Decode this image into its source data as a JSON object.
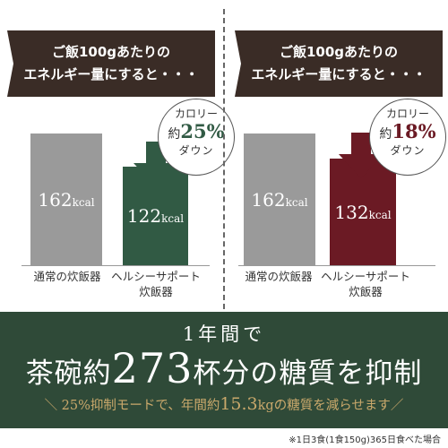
{
  "colors": {
    "banner_bg": "#3a2c26",
    "bar_normal": "#9a9a9a",
    "bar_left_healthy": "#315a44",
    "bar_right_healthy": "#6b1a24",
    "arrow_left": "#315a44",
    "arrow_right": "#6b1a24",
    "bottom_bg": "#2f4a38",
    "gold_text": "#c9a86b"
  },
  "chart_data": [
    {
      "type": "bar",
      "title": "ご飯100gあたりのエネルギー量にすると・・・",
      "title_lines": [
        "ご飯100gあたりの",
        "エネルギー量にすると・・・"
      ],
      "categories": [
        "通常の炊飯器",
        "ヘルシーサポート炊飯器"
      ],
      "category_lines": [
        [
          "通常の炊飯器"
        ],
        [
          "ヘルシーサポート",
          "炊飯器"
        ]
      ],
      "values": [
        162,
        122
      ],
      "unit": "kcal",
      "annotation": {
        "line1": "カロリー",
        "prefix": "約",
        "percent": "25%",
        "line3": "ダウン"
      },
      "ylim": [
        0,
        210
      ]
    },
    {
      "type": "bar",
      "title": "ご飯100gあたりのエネルギー量にすると・・・",
      "title_lines": [
        "ご飯100gあたりの",
        "エネルギー量にすると・・・"
      ],
      "categories": [
        "通常の炊飯器",
        "ヘルシーサポート炊飯器"
      ],
      "category_lines": [
        [
          "通常の炊飯器"
        ],
        [
          "ヘルシーサポート",
          "炊飯器"
        ]
      ],
      "values": [
        162,
        132
      ],
      "unit": "kcal",
      "annotation": {
        "line1": "カロリー",
        "prefix": "約",
        "percent": "18%",
        "line3": "ダウン"
      },
      "ylim": [
        0,
        210
      ]
    }
  ],
  "summary": {
    "line1": "1年間で",
    "line2_pre": "茶碗約",
    "line2_num": "273",
    "line2_post": "杯分の糖質を抑制",
    "line3_pre": "＼ 25%抑制モードで、年間約",
    "line3_num": "15.3",
    "line3_post": "kgの糖質を減らせます／"
  },
  "footnote": "※1日3食(1食150g)365日食べた場合"
}
